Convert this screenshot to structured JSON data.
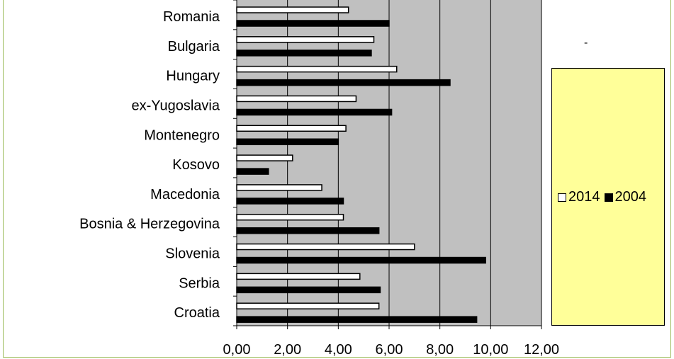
{
  "chart_data": {
    "type": "bar",
    "orientation": "horizontal",
    "categories": [
      "Romania",
      "Bulgaria",
      "Hungary",
      "ex-Yugoslavia",
      "Montenegro",
      "Kosovo",
      "Macedonia",
      "Bosnia & Herzegovina",
      "Slovenia",
      "Serbia",
      "Croatia"
    ],
    "series": [
      {
        "name": "2014",
        "values": [
          4.4,
          5.4,
          6.3,
          4.7,
          4.3,
          2.2,
          3.35,
          4.2,
          7.0,
          4.85,
          5.6
        ]
      },
      {
        "name": "2004",
        "values": [
          6.0,
          5.3,
          8.4,
          6.1,
          4.0,
          1.25,
          4.2,
          5.6,
          9.8,
          5.65,
          9.45
        ]
      }
    ],
    "xlim": [
      0,
      12
    ],
    "xticks": [
      "0,00",
      "2,00",
      "4,00",
      "6,00",
      "8,00",
      "10,00",
      "12,00"
    ],
    "grid": true,
    "legend_position": "right",
    "colors": {
      "plot_bg": "#c0c0c0",
      "series_2014": "#ffffff",
      "series_2004": "#000000",
      "legend_bg": "#ffff99",
      "frame": "#9bbb59"
    }
  },
  "legend": {
    "dash": "-",
    "entries": [
      {
        "label": "2014",
        "color": "#ffffff"
      },
      {
        "label": "2004",
        "color": "#000000"
      }
    ]
  }
}
